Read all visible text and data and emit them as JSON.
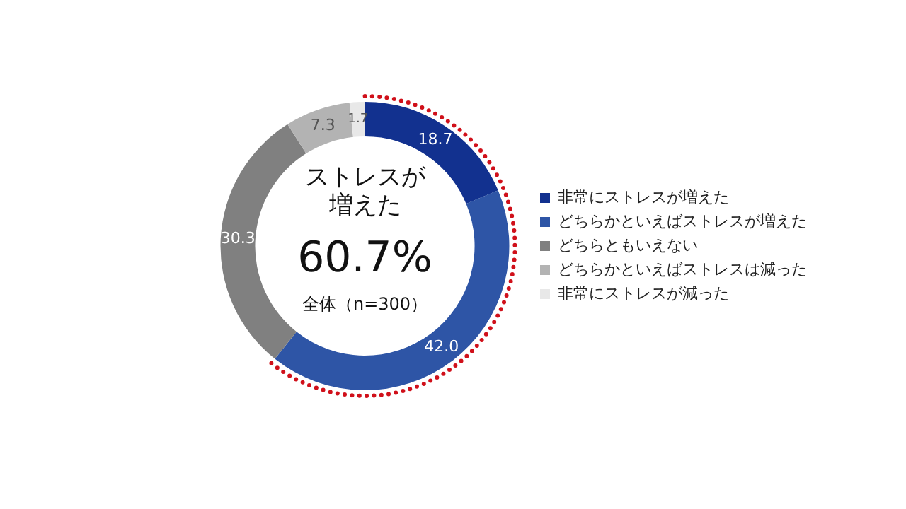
{
  "chart_data": {
    "type": "donut",
    "categories": [
      "非常にストレスが増えた",
      "どちらかといえばストレスが増えた",
      "どちらともいえない",
      "どちらかといえばストレスは減った",
      "非常にストレスが減った"
    ],
    "values": [
      18.7,
      42.0,
      30.3,
      7.3,
      1.7
    ],
    "colors": [
      "#12318f",
      "#2e55a6",
      "#808080",
      "#b3b3b3",
      "#e8e8e8"
    ],
    "value_labels": [
      "18.7",
      "42.0",
      "30.3",
      "7.3",
      "1.7"
    ],
    "legend": "right",
    "annotations": [
      "ストレスが",
      "増えた",
      "60.7%",
      "全体（n=300）"
    ]
  }
}
